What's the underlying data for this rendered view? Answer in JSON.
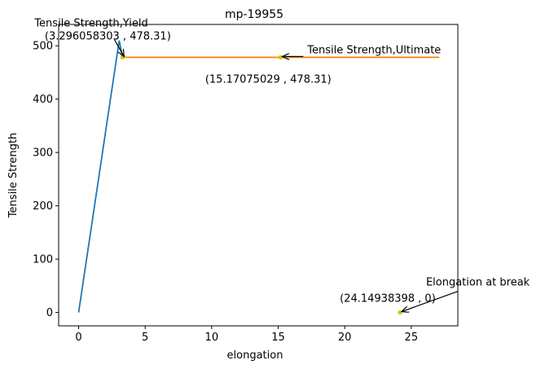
{
  "chart_data": {
    "type": "line",
    "title": "mp-19955",
    "xlabel": "elongation",
    "ylabel": "Tensile Strength",
    "xlim": [
      -1.5,
      28.5
    ],
    "ylim": [
      -25,
      540
    ],
    "xticks": [
      0,
      5,
      10,
      15,
      20,
      25
    ],
    "yticks": [
      0,
      100,
      200,
      300,
      400,
      500
    ],
    "grid": false,
    "series": [
      {
        "color": "#1f77b4",
        "points": [
          [
            0,
            0
          ],
          [
            3.05,
            510
          ],
          [
            3.296058303,
            478.31
          ]
        ]
      },
      {
        "color": "#ff7f0e",
        "points": [
          [
            3.296058303,
            478.31
          ],
          [
            27.1,
            478.31
          ]
        ]
      }
    ],
    "markers": [
      {
        "x": 3.296058303,
        "y": 478.31,
        "color": "#cccc00"
      },
      {
        "x": 15.17075029,
        "y": 478.31,
        "color": "#cccc00"
      },
      {
        "x": 24.14938398,
        "y": 0,
        "color": "#cccc00"
      }
    ],
    "annotations": [
      {
        "label": "Tensile Strength,Yield",
        "coord_label": "(3.296058303 , 478.31)",
        "x": 3.296058303,
        "y": 478.31
      },
      {
        "label": "Tensile Strength,Ultimate",
        "coord_label": "(15.17075029 , 478.31)",
        "x": 15.17075029,
        "y": 478.31
      },
      {
        "label": "Elongation at break",
        "coord_label": "(24.14938398 , 0)",
        "x": 24.14938398,
        "y": 0
      }
    ]
  }
}
